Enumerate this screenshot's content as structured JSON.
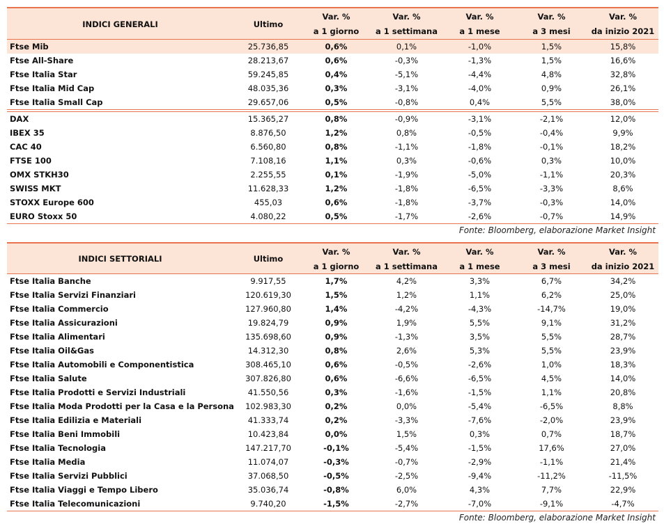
{
  "tables": [
    {
      "columns": [
        [
          "INDICI GENERALI"
        ],
        [
          "Ultimo"
        ],
        [
          "Var. %",
          "a 1 giorno"
        ],
        [
          "Var. %",
          "a 1 settimana"
        ],
        [
          "Var. %",
          "a 1 mese"
        ],
        [
          "Var. %",
          "a 3 mesi"
        ],
        [
          "Var. %",
          "da inizio 2021"
        ]
      ],
      "groups": [
        [
          [
            "Ftse Mib",
            "25.736,85",
            "0,6%",
            "0,1%",
            "-1,0%",
            "1,5%",
            "15,8%"
          ],
          [
            "Ftse All-Share",
            "28.213,67",
            "0,6%",
            "-0,3%",
            "-1,3%",
            "1,5%",
            "16,6%"
          ],
          [
            "Ftse Italia Star",
            "59.245,85",
            "0,4%",
            "-5,1%",
            "-4,4%",
            "4,8%",
            "32,8%"
          ],
          [
            "Ftse Italia Mid Cap",
            "48.035,36",
            "0,3%",
            "-3,1%",
            "-4,0%",
            "0,9%",
            "26,1%"
          ],
          [
            "Ftse Italia Small Cap",
            "29.657,06",
            "0,5%",
            "-0,8%",
            "0,4%",
            "5,5%",
            "38,0%"
          ]
        ],
        [
          [
            "DAX",
            "15.365,27",
            "0,8%",
            "-0,9%",
            "-3,1%",
            "-2,1%",
            "12,0%"
          ],
          [
            "IBEX 35",
            "8.876,50",
            "1,2%",
            "0,8%",
            "-0,5%",
            "-0,4%",
            "9,9%"
          ],
          [
            "CAC 40",
            "6.560,80",
            "0,8%",
            "-1,1%",
            "-1,8%",
            "-0,1%",
            "18,2%"
          ],
          [
            "FTSE 100",
            "7.108,16",
            "1,1%",
            "0,3%",
            "-0,6%",
            "0,3%",
            "10,0%"
          ],
          [
            "OMX STKH30",
            "2.255,55",
            "0,1%",
            "-1,9%",
            "-5,0%",
            "-1,1%",
            "20,3%"
          ],
          [
            "SWISS MKT",
            "11.628,33",
            "1,2%",
            "-1,8%",
            "-6,5%",
            "-3,3%",
            "8,6%"
          ],
          [
            "STOXX Europe 600",
            "455,03",
            "0,6%",
            "-1,8%",
            "-3,7%",
            "-0,3%",
            "14,0%"
          ],
          [
            "EURO Stoxx 50",
            "4.080,22",
            "0,5%",
            "-1,7%",
            "-2,6%",
            "-0,7%",
            "14,9%"
          ]
        ]
      ],
      "source": "Fonte: Bloomberg, elaborazione Market Insight"
    },
    {
      "columns": [
        [
          "INDICI SETTORIALI"
        ],
        [
          "Ultimo"
        ],
        [
          "Var. %",
          "a 1 giorno"
        ],
        [
          "Var. %",
          "a 1 settimana"
        ],
        [
          "Var. %",
          "a 1 mese"
        ],
        [
          "Var. %",
          "a 3 mesi"
        ],
        [
          "Var. %",
          "da inizio 2021"
        ]
      ],
      "groups": [
        [
          [
            "Ftse Italia Banche",
            "9.917,55",
            "1,7%",
            "4,2%",
            "3,3%",
            "6,7%",
            "34,2%"
          ],
          [
            "Ftse Italia Servizi Finanziari",
            "120.619,30",
            "1,5%",
            "1,2%",
            "1,1%",
            "6,2%",
            "25,0%"
          ],
          [
            "Ftse Italia Commercio",
            "127.960,80",
            "1,4%",
            "-4,2%",
            "-4,3%",
            "-14,7%",
            "19,0%"
          ],
          [
            "Ftse Italia Assicurazioni",
            "19.824,79",
            "0,9%",
            "1,9%",
            "5,5%",
            "9,1%",
            "31,2%"
          ],
          [
            "Ftse Italia Alimentari",
            "135.698,60",
            "0,9%",
            "-1,3%",
            "3,5%",
            "5,5%",
            "28,7%"
          ],
          [
            "Ftse Italia Oil&Gas",
            "14.312,30",
            "0,8%",
            "2,6%",
            "5,3%",
            "5,5%",
            "23,9%"
          ],
          [
            "Ftse Italia Automobili e Componentistica",
            "308.465,10",
            "0,6%",
            "-0,5%",
            "-2,6%",
            "1,0%",
            "18,3%"
          ],
          [
            "Ftse Italia Salute",
            "307.826,80",
            "0,6%",
            "-6,6%",
            "-6,5%",
            "4,5%",
            "14,0%"
          ],
          [
            "Ftse Italia Prodotti e Servizi Industriali",
            "41.550,56",
            "0,3%",
            "-1,6%",
            "-1,5%",
            "1,1%",
            "20,8%"
          ],
          [
            "Ftse Italia Moda Prodotti per la Casa e la Persona",
            "102.983,30",
            "0,2%",
            "0,0%",
            "-5,4%",
            "-6,5%",
            "8,8%"
          ],
          [
            "Ftse Italia Edilizia e Materiali",
            "41.333,74",
            "0,2%",
            "-3,3%",
            "-7,6%",
            "-2,0%",
            "23,9%"
          ],
          [
            "Ftse Italia Beni Immobili",
            "10.423,84",
            "0,0%",
            "1,5%",
            "0,3%",
            "0,7%",
            "18,7%"
          ],
          [
            "Ftse Italia Tecnologia",
            "147.217,70",
            "-0,1%",
            "-5,4%",
            "-1,5%",
            "17,6%",
            "27,0%"
          ],
          [
            "Ftse Italia Media",
            "11.074,07",
            "-0,3%",
            "-0,7%",
            "-2,9%",
            "-1,1%",
            "21,4%"
          ],
          [
            "Ftse Italia Servizi Pubblici",
            "37.068,50",
            "-0,5%",
            "-2,5%",
            "-9,4%",
            "-11,2%",
            "-11,5%"
          ],
          [
            "Ftse Italia Viaggi e Tempo Libero",
            "35.036,74",
            "-0,8%",
            "6,0%",
            "4,3%",
            "7,7%",
            "22,9%"
          ],
          [
            "Ftse Italia Telecomunicazioni",
            "9.740,20",
            "-1,5%",
            "-2,7%",
            "-7,0%",
            "-9,1%",
            "-4,7%"
          ]
        ]
      ],
      "source": "Fonte: Bloomberg, elaborazione Market Insight"
    }
  ]
}
